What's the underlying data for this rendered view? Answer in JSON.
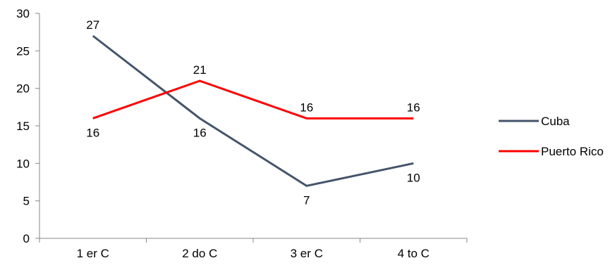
{
  "chart_data": {
    "type": "line",
    "title": "",
    "xlabel": "",
    "ylabel": "",
    "categories": [
      "1 er C",
      "2 do C",
      "3 er C",
      "4 to C"
    ],
    "ylim": [
      0,
      30
    ],
    "yticks": [
      0,
      5,
      10,
      15,
      20,
      25,
      30
    ],
    "grid": false,
    "legend_position": "right",
    "series": [
      {
        "name": "Cuba",
        "values": [
          27,
          16,
          7,
          10
        ],
        "color": "#44546a"
      },
      {
        "name": "Puerto Rico",
        "values": [
          16,
          21,
          16,
          16
        ],
        "color": "#ff0000"
      }
    ]
  }
}
